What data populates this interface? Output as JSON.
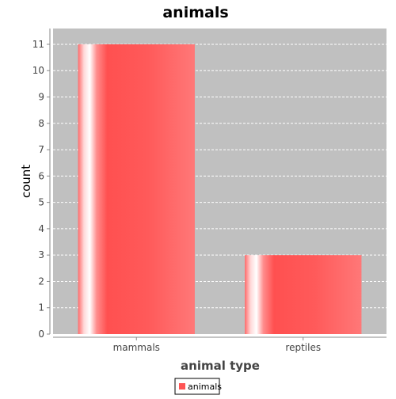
{
  "chart_data": {
    "type": "bar",
    "title": "animals",
    "xlabel": "animal type",
    "ylabel": "count",
    "categories": [
      "mammals",
      "reptiles"
    ],
    "series": [
      {
        "name": "animals",
        "values": [
          11,
          3
        ],
        "color": "#ff5555"
      }
    ],
    "ylim": [
      0,
      11.6
    ],
    "yticks": [
      0,
      1,
      2,
      3,
      4,
      5,
      6,
      7,
      8,
      9,
      10,
      11
    ],
    "grid": true,
    "legend": "bottom-center",
    "colors": {
      "plot_background": "#c0c0c0",
      "grid": "#ffffff",
      "bar": "#ff5555",
      "text": "#444444"
    }
  }
}
